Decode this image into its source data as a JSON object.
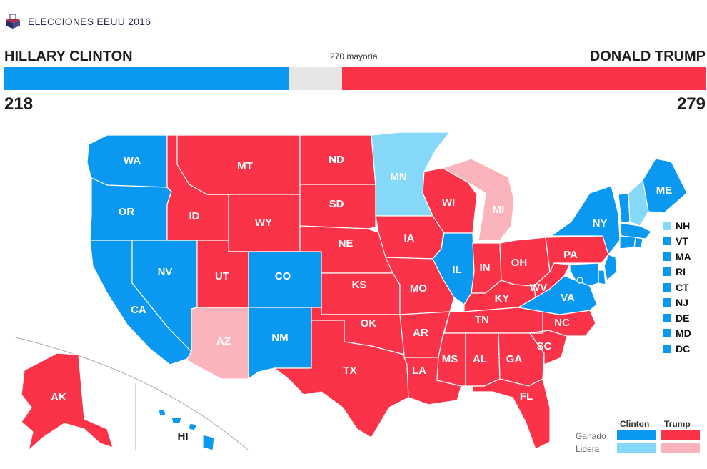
{
  "header": {
    "title": "ELECCIONES EEUU 2016",
    "brand_icon": "ballot-box-icon"
  },
  "tally": {
    "left_name": "HILLARY CLINTON",
    "right_name": "DONALD TRUMP",
    "left_votes": "218",
    "right_votes": "279",
    "majority_label": "270 mayoría",
    "total_electoral": 538,
    "majority_value": 270,
    "left_value": 218,
    "right_value": 279
  },
  "colors": {
    "clinton_won": "#0a98f0",
    "clinton_leads": "#86d8f8",
    "trump_won": "#fb3349",
    "trump_leads": "#fbb4bc",
    "undecided": "#e6e6e6"
  },
  "states": [
    {
      "abbr": "WA",
      "status": "clinton_won"
    },
    {
      "abbr": "OR",
      "status": "clinton_won"
    },
    {
      "abbr": "CA",
      "status": "clinton_won"
    },
    {
      "abbr": "NV",
      "status": "clinton_won"
    },
    {
      "abbr": "ID",
      "status": "trump_won"
    },
    {
      "abbr": "MT",
      "status": "trump_won"
    },
    {
      "abbr": "WY",
      "status": "trump_won"
    },
    {
      "abbr": "UT",
      "status": "trump_won"
    },
    {
      "abbr": "AZ",
      "status": "trump_leads"
    },
    {
      "abbr": "CO",
      "status": "clinton_won"
    },
    {
      "abbr": "NM",
      "status": "clinton_won"
    },
    {
      "abbr": "ND",
      "status": "trump_won"
    },
    {
      "abbr": "SD",
      "status": "trump_won"
    },
    {
      "abbr": "NE",
      "status": "trump_won"
    },
    {
      "abbr": "KS",
      "status": "trump_won"
    },
    {
      "abbr": "OK",
      "status": "trump_won"
    },
    {
      "abbr": "TX",
      "status": "trump_won"
    },
    {
      "abbr": "MN",
      "status": "clinton_leads"
    },
    {
      "abbr": "IA",
      "status": "trump_won"
    },
    {
      "abbr": "MO",
      "status": "trump_won"
    },
    {
      "abbr": "AR",
      "status": "trump_won"
    },
    {
      "abbr": "LA",
      "status": "trump_won"
    },
    {
      "abbr": "WI",
      "status": "trump_won"
    },
    {
      "abbr": "IL",
      "status": "clinton_won"
    },
    {
      "abbr": "MI",
      "status": "trump_leads"
    },
    {
      "abbr": "IN",
      "status": "trump_won"
    },
    {
      "abbr": "OH",
      "status": "trump_won"
    },
    {
      "abbr": "KY",
      "status": "trump_won"
    },
    {
      "abbr": "TN",
      "status": "trump_won"
    },
    {
      "abbr": "MS",
      "status": "trump_won"
    },
    {
      "abbr": "AL",
      "status": "trump_won"
    },
    {
      "abbr": "GA",
      "status": "trump_won"
    },
    {
      "abbr": "FL",
      "status": "trump_won"
    },
    {
      "abbr": "SC",
      "status": "trump_won"
    },
    {
      "abbr": "NC",
      "status": "trump_won"
    },
    {
      "abbr": "VA",
      "status": "clinton_won"
    },
    {
      "abbr": "WV",
      "status": "trump_won"
    },
    {
      "abbr": "PA",
      "status": "trump_won"
    },
    {
      "abbr": "NY",
      "status": "clinton_won"
    },
    {
      "abbr": "ME",
      "status": "clinton_won"
    },
    {
      "abbr": "AK",
      "status": "trump_won"
    },
    {
      "abbr": "HI",
      "status": "clinton_won"
    }
  ],
  "small_states": [
    {
      "abbr": "NH",
      "status": "clinton_leads"
    },
    {
      "abbr": "VT",
      "status": "clinton_won"
    },
    {
      "abbr": "MA",
      "status": "clinton_won"
    },
    {
      "abbr": "RI",
      "status": "clinton_won"
    },
    {
      "abbr": "CT",
      "status": "clinton_won"
    },
    {
      "abbr": "NJ",
      "status": "clinton_won"
    },
    {
      "abbr": "DE",
      "status": "clinton_won"
    },
    {
      "abbr": "MD",
      "status": "clinton_won"
    },
    {
      "abbr": "DC",
      "status": "clinton_won"
    }
  ],
  "legend": {
    "col_clinton": "Clinton",
    "col_trump": "Trump",
    "row_won": "Ganado",
    "row_leads": "Lidera"
  }
}
